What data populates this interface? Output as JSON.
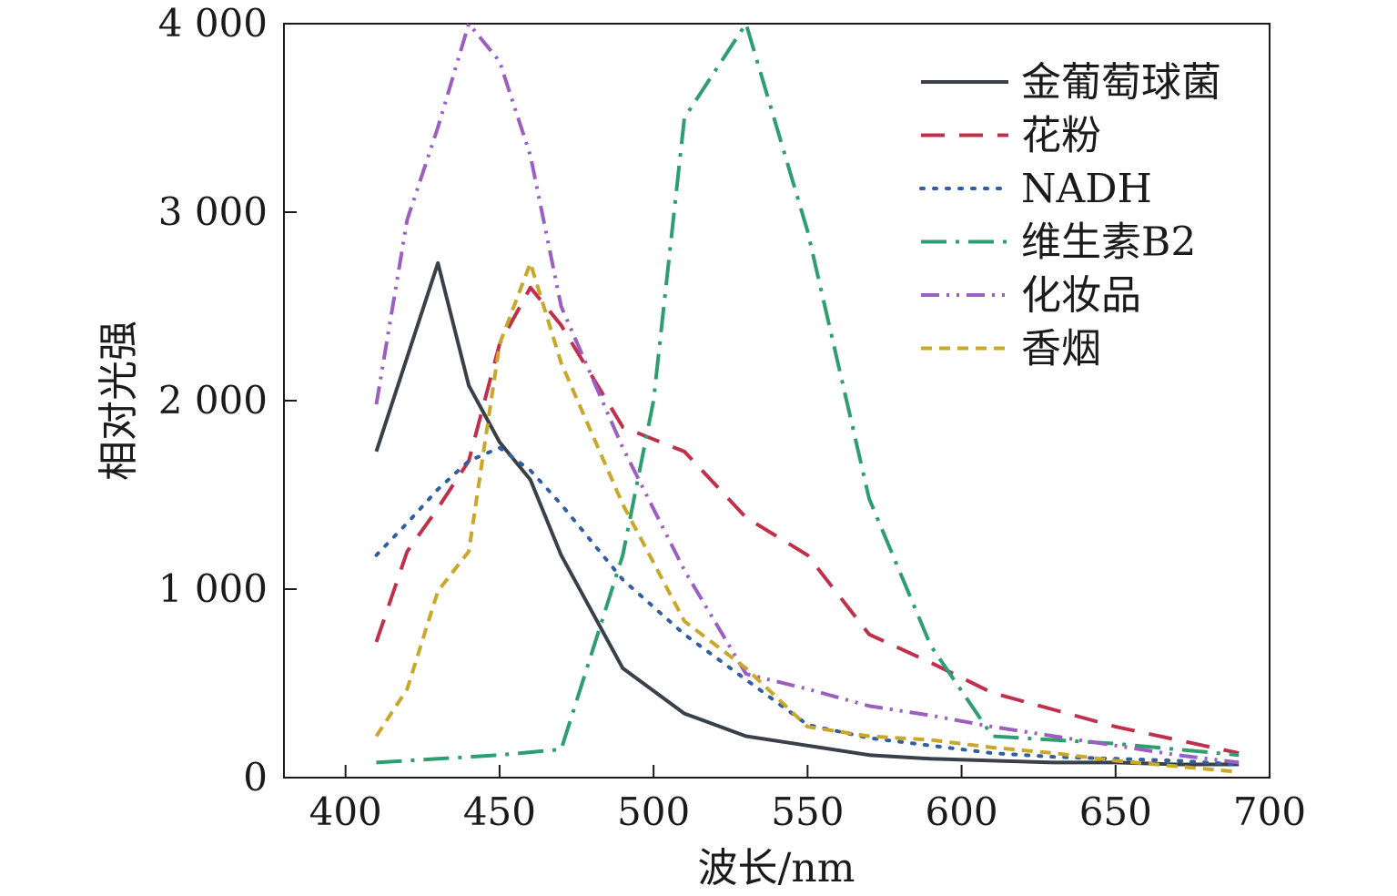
{
  "chart_data": {
    "type": "line",
    "xlabel": "波长/nm",
    "ylabel": "相对光强",
    "xlim": [
      380,
      700
    ],
    "ylim": [
      0,
      4000
    ],
    "xticks": [
      400,
      450,
      500,
      550,
      600,
      650,
      700
    ],
    "yticks": [
      0,
      1000,
      2000,
      3000,
      4000
    ],
    "xtick_labels": [
      "400",
      "450",
      "500",
      "550",
      "600",
      "650",
      "700"
    ],
    "ytick_labels": [
      "0",
      "1 000",
      "2 000",
      "3 000",
      "4 000"
    ],
    "legend_position": "top-right",
    "grid": false,
    "series": [
      {
        "name": "金葡萄球菌",
        "color": "#3a4049",
        "style": "solid",
        "x": [
          410,
          430,
          440,
          450,
          460,
          470,
          490,
          510,
          530,
          550,
          570,
          590,
          610,
          630,
          650,
          670,
          690
        ],
        "y": [
          1730,
          2730,
          2080,
          1780,
          1580,
          1180,
          580,
          340,
          220,
          170,
          120,
          100,
          90,
          80,
          80,
          70,
          70
        ]
      },
      {
        "name": "花粉",
        "color": "#c0304a",
        "style": "dashed",
        "x": [
          410,
          420,
          430,
          440,
          450,
          460,
          470,
          490,
          510,
          530,
          550,
          570,
          590,
          610,
          630,
          650,
          670,
          690
        ],
        "y": [
          720,
          1200,
          1430,
          1680,
          2300,
          2600,
          2400,
          1860,
          1730,
          1380,
          1180,
          760,
          610,
          450,
          360,
          270,
          200,
          130
        ]
      },
      {
        "name": "NADH",
        "color": "#2f5fa0",
        "style": "dotted",
        "x": [
          410,
          420,
          430,
          440,
          450,
          460,
          470,
          490,
          510,
          530,
          550,
          570,
          590,
          610,
          630,
          650,
          670,
          690
        ],
        "y": [
          1180,
          1350,
          1530,
          1680,
          1750,
          1630,
          1450,
          1050,
          760,
          520,
          280,
          210,
          170,
          130,
          110,
          100,
          90,
          70
        ]
      },
      {
        "name": "维生素B2",
        "color": "#2e9e70",
        "style": "dashdot",
        "x": [
          410,
          430,
          450,
          470,
          490,
          500,
          510,
          530,
          550,
          570,
          590,
          610,
          630,
          650,
          670,
          690
        ],
        "y": [
          80,
          100,
          120,
          150,
          1180,
          2000,
          3500,
          4000,
          2900,
          1480,
          700,
          220,
          200,
          180,
          150,
          120
        ]
      },
      {
        "name": "化妆品",
        "color": "#9a5fc0",
        "style": "dashdotdot",
        "x": [
          410,
          420,
          430,
          440,
          450,
          460,
          470,
          490,
          510,
          530,
          550,
          570,
          590,
          610,
          630,
          650,
          670,
          690
        ],
        "y": [
          1980,
          2960,
          3450,
          4000,
          3800,
          3300,
          2500,
          1750,
          1100,
          550,
          470,
          380,
          330,
          270,
          220,
          170,
          120,
          80
        ]
      },
      {
        "name": "香烟",
        "color": "#c9a72a",
        "style": "shortdash",
        "x": [
          410,
          420,
          430,
          440,
          450,
          460,
          470,
          490,
          510,
          530,
          550,
          570,
          590,
          610,
          630,
          650,
          670,
          690
        ],
        "y": [
          220,
          470,
          990,
          1200,
          2300,
          2730,
          2200,
          1450,
          830,
          580,
          270,
          220,
          200,
          160,
          130,
          90,
          60,
          30
        ]
      }
    ]
  }
}
